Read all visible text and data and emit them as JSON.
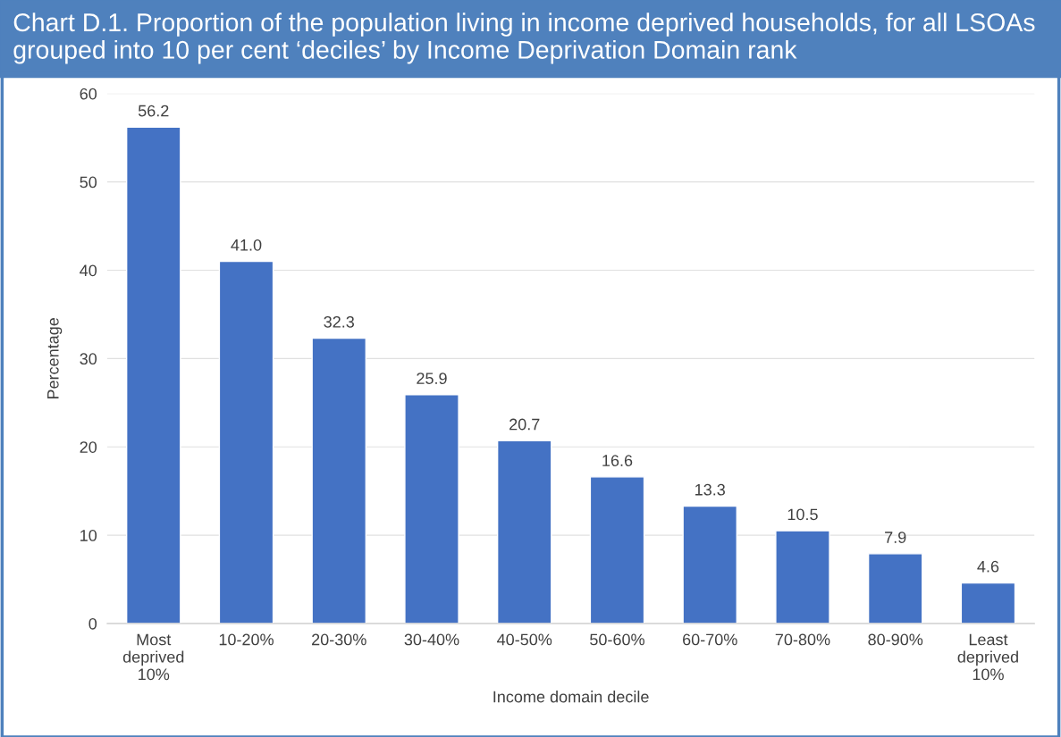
{
  "chart_data": {
    "type": "bar",
    "title": "Chart D.1. Proportion of the population living in income deprived households, for all LSOAs grouped into 10 per cent ‘deciles’ by Income Deprivation Domain rank",
    "xlabel": "Income domain decile",
    "ylabel": "Percentage",
    "categories": [
      "Most deprived 10%",
      "10-20%",
      "20-30%",
      "30-40%",
      "40-50%",
      "50-60%",
      "60-70%",
      "70-80%",
      "80-90%",
      "Least deprived 10%"
    ],
    "values": [
      56.2,
      41.0,
      32.3,
      25.9,
      20.7,
      16.6,
      13.3,
      10.5,
      7.9,
      4.6
    ],
    "value_labels": [
      "56.2",
      "41.0",
      "32.3",
      "25.9",
      "20.7",
      "16.6",
      "13.3",
      "10.5",
      "7.9",
      "4.6"
    ],
    "color": "#4472c4",
    "ylim": [
      0,
      60
    ],
    "yticks": [
      0,
      10,
      20,
      30,
      40,
      50,
      60
    ],
    "grid": "y",
    "legend": false
  }
}
